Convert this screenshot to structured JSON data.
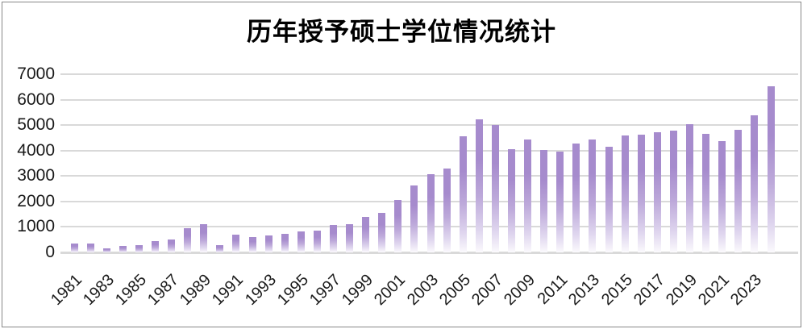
{
  "chart_data": {
    "type": "bar",
    "title": "历年授予硕士学位情况统计",
    "categories": [
      "1981",
      "1982",
      "1983",
      "1984",
      "1985",
      "1986",
      "1987",
      "1988",
      "1989",
      "1990",
      "1991",
      "1992",
      "1993",
      "1994",
      "1995",
      "1996",
      "1997",
      "1998",
      "1999",
      "2000",
      "2001",
      "2002",
      "2003",
      "2004",
      "2005",
      "2006",
      "2007",
      "2008",
      "2009",
      "2010",
      "2011",
      "2012",
      "2013",
      "2014",
      "2015",
      "2016",
      "2017",
      "2018",
      "2019",
      "2020",
      "2021",
      "2022",
      "2023",
      "2024"
    ],
    "values": [
      340,
      340,
      160,
      240,
      300,
      430,
      520,
      950,
      1100,
      300,
      700,
      610,
      650,
      740,
      810,
      870,
      1090,
      1100,
      1390,
      1560,
      2050,
      2640,
      3060,
      3280,
      4550,
      5240,
      5000,
      4070,
      4440,
      4030,
      3960,
      4280,
      4430,
      4160,
      4600,
      4620,
      4730,
      4780,
      5040,
      4650,
      4360,
      4800,
      5380,
      6520
    ],
    "x_tick_labels": [
      "1981",
      "1983",
      "1985",
      "1987",
      "1989",
      "1991",
      "1993",
      "1995",
      "1997",
      "1999",
      "2001",
      "2003",
      "2005",
      "2007",
      "2009",
      "2011",
      "2013",
      "2015",
      "2017",
      "2019",
      "2021",
      "2023"
    ],
    "y_ticks": [
      0,
      1000,
      2000,
      3000,
      4000,
      5000,
      6000,
      7000
    ],
    "ylim": [
      0,
      7000
    ],
    "xlabel": "",
    "ylabel": "",
    "grid": "horizontal",
    "legend": "none",
    "colors": {
      "bar_top": "#a68bcd",
      "bar_fade_bottom": "#fbfafd",
      "gridline": "#d9d9d9",
      "axis_text": "#1a1a1a",
      "title_text": "#000000",
      "frame_border": "#878787"
    }
  }
}
